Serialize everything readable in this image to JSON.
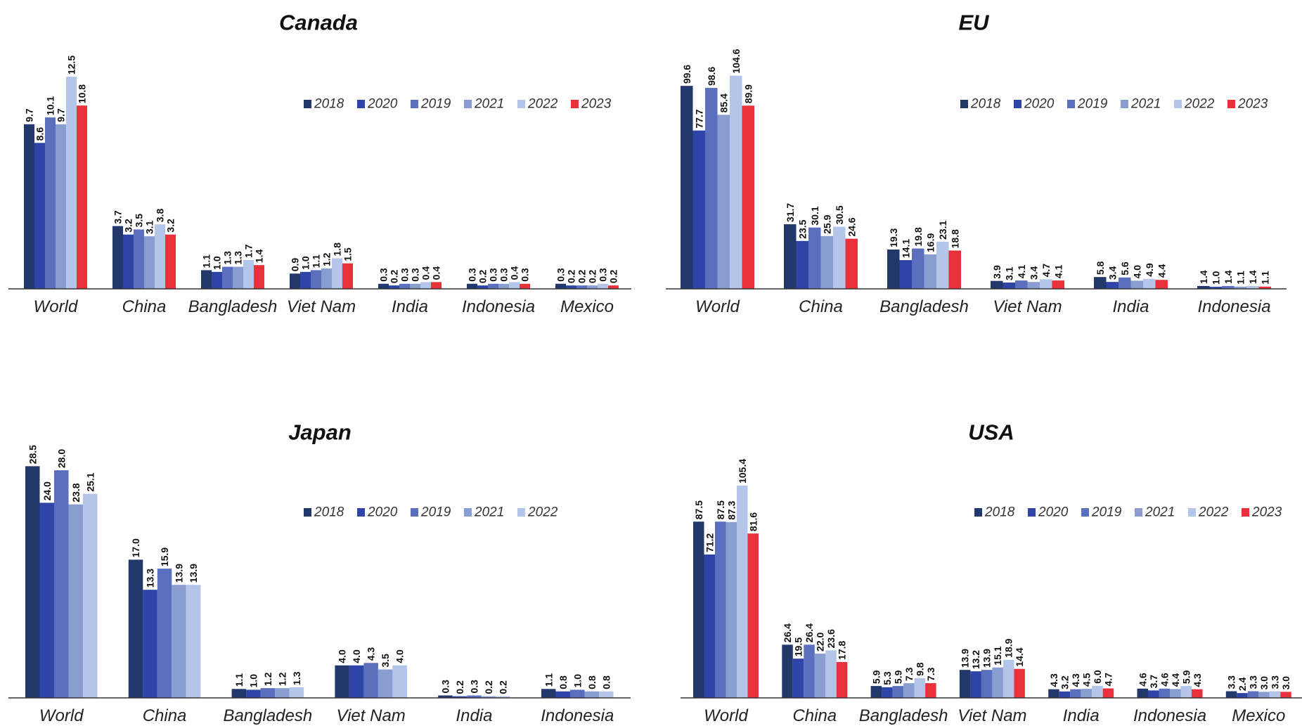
{
  "colors": {
    "2018": "#22386a",
    "2020": "#2e44a6",
    "2019": "#5a6fbe",
    "2021": "#899dd1",
    "2022": "#b3c5e8",
    "2023": "#e8313a",
    "axis": "#333333"
  },
  "chart_data": [
    {
      "type": "bar",
      "title": "Canada",
      "categories": [
        "World",
        "China",
        "Bangladesh",
        "Viet Nam",
        "India",
        "Indonesia",
        "Mexico"
      ],
      "legend": [
        "2018",
        "2020",
        "2019",
        "2021",
        "2022",
        "2023"
      ],
      "legend_position": "top-right",
      "ylim": [
        0,
        13.5
      ],
      "series": [
        {
          "name": "2018",
          "values": [
            9.7,
            3.7,
            1.1,
            0.9,
            0.3,
            0.3,
            0.3
          ]
        },
        {
          "name": "2020",
          "values": [
            8.6,
            3.2,
            1.0,
            1.0,
            0.2,
            0.2,
            0.2
          ]
        },
        {
          "name": "2019",
          "values": [
            10.1,
            3.5,
            1.3,
            1.1,
            0.3,
            0.3,
            0.2
          ]
        },
        {
          "name": "2021",
          "values": [
            9.7,
            3.1,
            1.3,
            1.2,
            0.3,
            0.3,
            0.2
          ]
        },
        {
          "name": "2022",
          "values": [
            12.5,
            3.8,
            1.7,
            1.8,
            0.4,
            0.4,
            0.3
          ]
        },
        {
          "name": "2023",
          "values": [
            10.8,
            3.2,
            1.4,
            1.5,
            0.4,
            0.3,
            0.2
          ]
        }
      ]
    },
    {
      "type": "bar",
      "title": "EU",
      "categories": [
        "World",
        "China",
        "Bangladesh",
        "Viet Nam",
        "India",
        "Indonesia"
      ],
      "legend": [
        "2018",
        "2020",
        "2019",
        "2021",
        "2022",
        "2023"
      ],
      "legend_position": "top-right",
      "ylim": [
        0,
        110
      ],
      "series": [
        {
          "name": "2018",
          "values": [
            99.6,
            31.7,
            19.3,
            3.9,
            5.8,
            1.4
          ]
        },
        {
          "name": "2020",
          "values": [
            77.7,
            23.5,
            14.1,
            3.1,
            3.4,
            1.0
          ]
        },
        {
          "name": "2019",
          "values": [
            98.6,
            30.1,
            19.8,
            4.1,
            5.6,
            1.4
          ]
        },
        {
          "name": "2021",
          "values": [
            85.4,
            25.9,
            16.9,
            3.4,
            4.0,
            1.1
          ]
        },
        {
          "name": "2022",
          "values": [
            104.6,
            30.5,
            23.1,
            4.7,
            4.9,
            1.4
          ]
        },
        {
          "name": "2023",
          "values": [
            89.9,
            24.6,
            18.8,
            4.1,
            4.4,
            1.1
          ]
        }
      ]
    },
    {
      "type": "bar",
      "title": "Japan",
      "categories": [
        "World",
        "China",
        "Bangladesh",
        "Viet Nam",
        "India",
        "Indonesia"
      ],
      "legend": [
        "2018",
        "2020",
        "2019",
        "2021",
        "2022"
      ],
      "legend_position": "top-right",
      "ylim": [
        0,
        30
      ],
      "series": [
        {
          "name": "2018",
          "values": [
            28.5,
            17.0,
            1.1,
            4.0,
            0.3,
            1.1
          ]
        },
        {
          "name": "2020",
          "values": [
            24.0,
            13.3,
            1.0,
            4.0,
            0.2,
            0.8
          ]
        },
        {
          "name": "2019",
          "values": [
            28.0,
            15.9,
            1.2,
            4.3,
            0.3,
            1.0
          ]
        },
        {
          "name": "2021",
          "values": [
            23.8,
            13.9,
            1.2,
            3.5,
            0.2,
            0.8
          ]
        },
        {
          "name": "2022",
          "values": [
            25.1,
            13.9,
            1.3,
            4.0,
            0.2,
            0.8
          ]
        }
      ]
    },
    {
      "type": "bar",
      "title": "USA",
      "categories": [
        "World",
        "China",
        "Bangladesh",
        "Viet Nam",
        "India",
        "Indonesia",
        "Mexico"
      ],
      "legend": [
        "2018",
        "2020",
        "2019",
        "2021",
        "2022",
        "2023"
      ],
      "legend_position": "top-right",
      "ylim": [
        0,
        112
      ],
      "series": [
        {
          "name": "2018",
          "values": [
            87.5,
            26.4,
            5.9,
            13.9,
            4.3,
            4.6,
            3.3
          ]
        },
        {
          "name": "2020",
          "values": [
            71.2,
            19.5,
            5.3,
            13.2,
            3.2,
            3.7,
            2.4
          ]
        },
        {
          "name": "2019",
          "values": [
            87.5,
            26.4,
            5.9,
            13.9,
            4.3,
            4.6,
            3.3
          ]
        },
        {
          "name": "2021",
          "values": [
            87.3,
            22.0,
            7.3,
            15.1,
            4.5,
            4.4,
            3.0
          ]
        },
        {
          "name": "2022",
          "values": [
            105.4,
            23.6,
            9.8,
            18.9,
            6.0,
            5.9,
            3.3
          ]
        },
        {
          "name": "2023",
          "values": [
            81.6,
            17.8,
            7.3,
            14.4,
            4.7,
            4.3,
            3.0
          ]
        }
      ]
    }
  ]
}
